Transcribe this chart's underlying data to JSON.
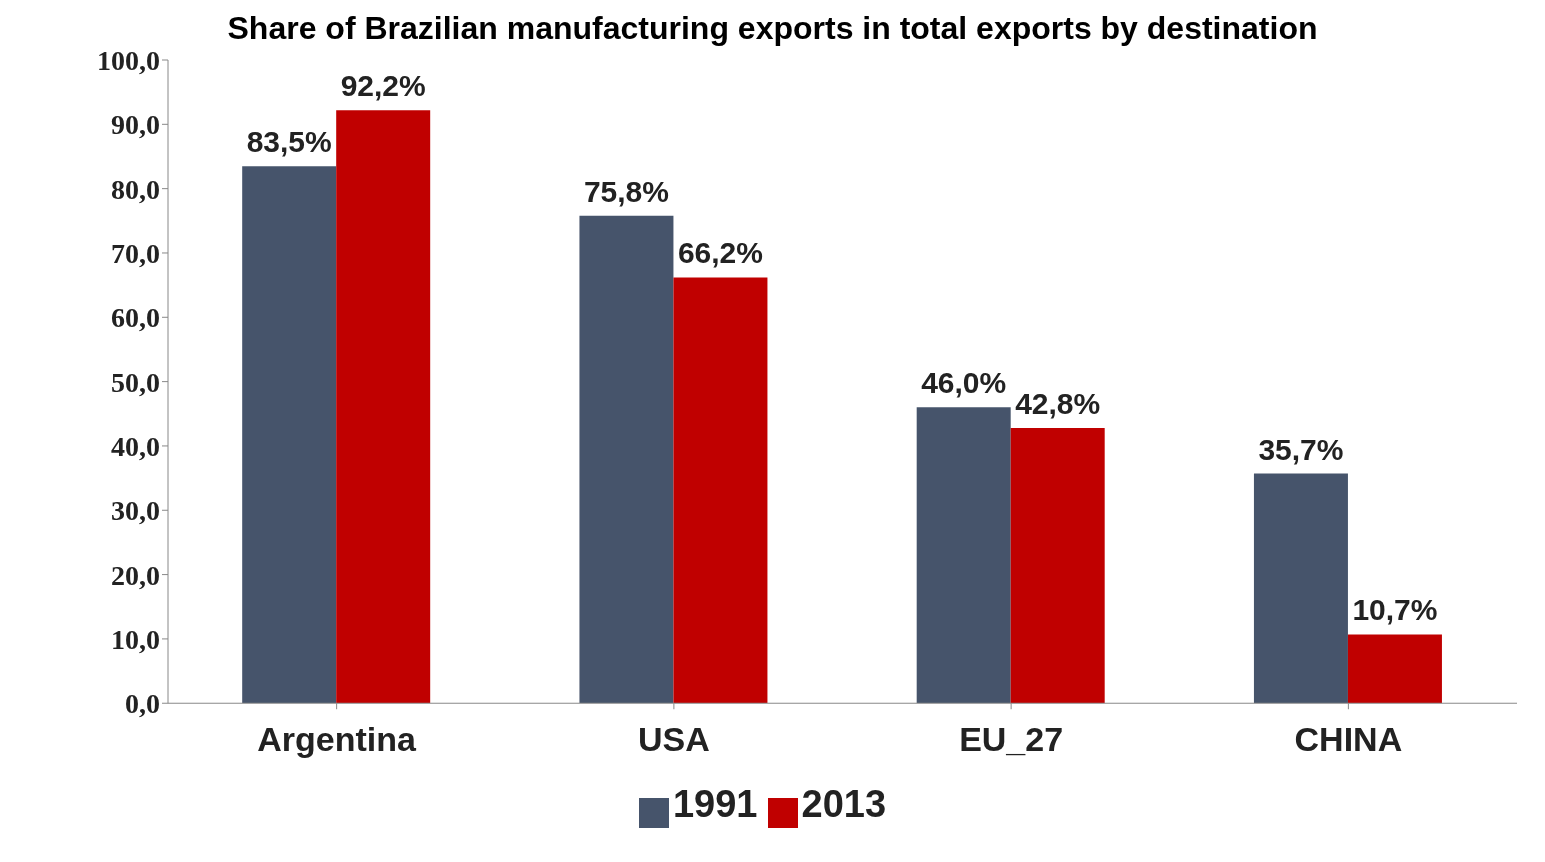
{
  "chart_data": {
    "type": "bar",
    "title": "Share of Brazilian manufacturing exports in total exports by destination",
    "categories": [
      "Argentina",
      "USA",
      "EU_27",
      "CHINA"
    ],
    "series": [
      {
        "name": "1991",
        "color": "#46546b",
        "values": [
          83.5,
          75.8,
          46.0,
          35.7
        ],
        "value_labels": [
          "83,5%",
          "75,8%",
          "46,0%",
          "35,7%"
        ]
      },
      {
        "name": "2013",
        "color": "#c00000",
        "values": [
          92.2,
          66.2,
          42.8,
          10.7
        ],
        "value_labels": [
          "92,2%",
          "66,2%",
          "42,8%",
          "10,7%"
        ]
      }
    ],
    "ylim": [
      0,
      100
    ],
    "yticks": [
      {
        "value": 0,
        "label": "0,0"
      },
      {
        "value": 10,
        "label": "10,0"
      },
      {
        "value": 20,
        "label": "20,0"
      },
      {
        "value": 30,
        "label": "30,0"
      },
      {
        "value": 40,
        "label": "40,0"
      },
      {
        "value": 50,
        "label": "50,0"
      },
      {
        "value": 60,
        "label": "60,0"
      },
      {
        "value": 70,
        "label": "70,0"
      },
      {
        "value": 80,
        "label": "80,0"
      },
      {
        "value": 90,
        "label": "90,0"
      },
      {
        "value": 100,
        "label": "100,0"
      }
    ],
    "grid": false,
    "legend": "bottom"
  }
}
